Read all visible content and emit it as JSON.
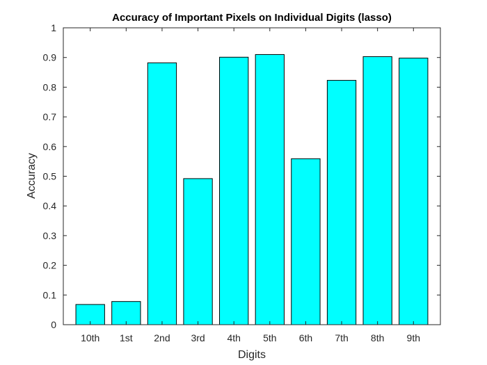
{
  "chart_data": {
    "type": "bar",
    "title": "Accuracy of Important Pixels on Individual Digits (lasso)",
    "xlabel": "Digits",
    "ylabel": "Accuracy",
    "categories": [
      "10th",
      "1st",
      "2nd",
      "3rd",
      "4th",
      "5th",
      "6th",
      "7th",
      "8th",
      "9th"
    ],
    "values": [
      0.068,
      0.078,
      0.882,
      0.492,
      0.901,
      0.91,
      0.559,
      0.823,
      0.903,
      0.898
    ],
    "ylim": [
      0,
      1
    ],
    "yticks": [
      "0",
      "0.1",
      "0.2",
      "0.3",
      "0.4",
      "0.5",
      "0.6",
      "0.7",
      "0.8",
      "0.9",
      "1"
    ],
    "grid": false,
    "bar_color": "#00ffff",
    "edge_color": "#000000"
  }
}
